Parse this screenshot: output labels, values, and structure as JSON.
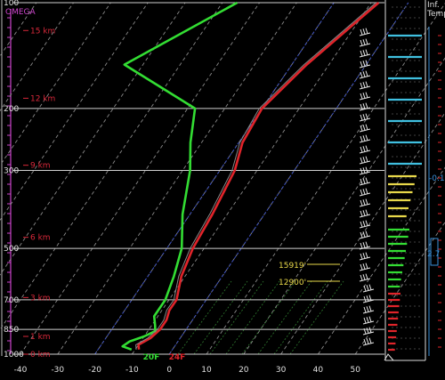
{
  "chart_data": {
    "type": "line",
    "title": "",
    "xlabel": "",
    "ylabel": "",
    "x_axis": {
      "label": "",
      "ticks": [
        -40,
        -30,
        -20,
        -10,
        0,
        10,
        20,
        30,
        40,
        50
      ],
      "range": [
        -40,
        50
      ]
    },
    "pressure_labels": [
      "100",
      "200",
      "300",
      "500",
      "700",
      "850",
      "1000"
    ],
    "pressure_levels": [
      100,
      200,
      300,
      500,
      700,
      850,
      1000
    ],
    "height_markers": [
      {
        "label": "15 km",
        "pressure": 120
      },
      {
        "label": "12 km",
        "pressure": 187
      },
      {
        "label": "9 km",
        "pressure": 290
      },
      {
        "label": "6 km",
        "pressure": 465
      },
      {
        "label": "3 km",
        "pressure": 690
      },
      {
        "label": "1 km",
        "pressure": 890
      },
      {
        "label": "0 km",
        "pressure": 1000
      }
    ],
    "omega_label": "OMEGA",
    "series": [
      {
        "name": "",
        "color": "#e0242a",
        "points": [
          {
            "p": 100,
            "t": -8
          },
          {
            "p": 150,
            "t": -16
          },
          {
            "p": 200,
            "t": -20
          },
          {
            "p": 250,
            "t": -19
          },
          {
            "p": 300,
            "t": -16
          },
          {
            "p": 400,
            "t": -14
          },
          {
            "p": 500,
            "t": -13
          },
          {
            "p": 600,
            "t": -11
          },
          {
            "p": 700,
            "t": -8
          },
          {
            "p": 750,
            "t": -8
          },
          {
            "p": 800,
            "t": -7
          },
          {
            "p": 850,
            "t": -7
          },
          {
            "p": 900,
            "t": -8
          },
          {
            "p": 940,
            "t": -10
          },
          {
            "p": 970,
            "t": -9
          }
        ]
      },
      {
        "name": "",
        "color": "#33dd33",
        "points": [
          {
            "p": 100,
            "t": -46
          },
          {
            "p": 150,
            "t": -65
          },
          {
            "p": 200,
            "t": -38
          },
          {
            "p": 250,
            "t": -33
          },
          {
            "p": 300,
            "t": -28
          },
          {
            "p": 400,
            "t": -22
          },
          {
            "p": 500,
            "t": -16
          },
          {
            "p": 600,
            "t": -13
          },
          {
            "p": 700,
            "t": -11
          },
          {
            "p": 780,
            "t": -11
          },
          {
            "p": 830,
            "t": -9
          },
          {
            "p": 860,
            "t": -8
          },
          {
            "p": 890,
            "t": -10
          },
          {
            "p": 920,
            "t": -13
          },
          {
            "p": 950,
            "t": -14
          },
          {
            "p": 970,
            "t": -11
          }
        ]
      }
    ],
    "surface_labels": [
      {
        "text": "20F",
        "color": "#33dd33",
        "t": -9
      },
      {
        "text": "24F",
        "color": "#e0242a",
        "t": -3
      }
    ],
    "level_annotations": [
      {
        "text": "15919'",
        "color": "#e8d84a",
        "pressure": 555
      },
      {
        "text": "12900'",
        "color": "#e8d84a",
        "pressure": 620
      }
    ],
    "side_panel_labels": [
      "Inf.",
      "Temp",
      "-0.1",
      "2.7"
    ],
    "colors": {
      "background": "#000000",
      "isobar": "#cfcfcf",
      "isotherm": "#8a8a8a",
      "temperature": "#e0242a",
      "dewpoint": "#33dd33",
      "height_label": "#d8283a",
      "axis_label": "#e0e0e0",
      "omega": "#cc44cc",
      "hodo_cyan": "#40c0e0",
      "hodo_yellow": "#e8d84a",
      "hodo_green": "#33dd33",
      "hodo_red": "#e0242a",
      "side_blue": "#3a8fd8"
    }
  }
}
